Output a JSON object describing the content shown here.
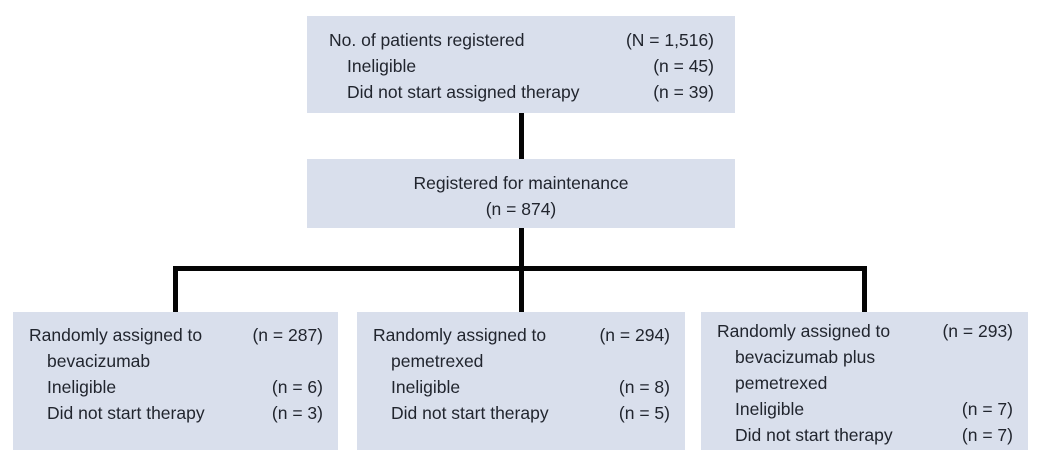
{
  "colors": {
    "box_fill": "#d9dfec",
    "text": "#21252e",
    "connector_line": "#050505",
    "background": "#ffffff"
  },
  "registration_box": {
    "rows": [
      {
        "label": "No. of patients registered",
        "value": "(N = 1,516)"
      },
      {
        "label": "Ineligible",
        "value": "(n = 45)"
      },
      {
        "label": "Did not start assigned therapy",
        "value": "(n = 39)"
      }
    ]
  },
  "maintenance_box": {
    "title": "Registered for maintenance",
    "n": "(n = 874)"
  },
  "arms": [
    {
      "rows": [
        {
          "label": "Randomly assigned to",
          "value": "(n = 287)"
        },
        {
          "label": "bevacizumab",
          "value": ""
        },
        {
          "label": "Ineligible",
          "value": "(n = 6)"
        },
        {
          "label": "Did not start therapy",
          "value": "(n = 3)"
        }
      ]
    },
    {
      "rows": [
        {
          "label": "Randomly assigned to",
          "value": "(n = 294)"
        },
        {
          "label": "pemetrexed",
          "value": ""
        },
        {
          "label": "Ineligible",
          "value": "(n = 8)"
        },
        {
          "label": "Did not start therapy",
          "value": "(n = 5)"
        }
      ]
    },
    {
      "rows": [
        {
          "label": "Randomly assigned to",
          "value": "(n = 293)"
        },
        {
          "label": "bevacizumab plus",
          "value": ""
        },
        {
          "label": "pemetrexed",
          "value": ""
        },
        {
          "label": "Ineligible",
          "value": "(n = 7)"
        },
        {
          "label": "Did not start therapy",
          "value": "(n = 7)"
        }
      ]
    }
  ]
}
